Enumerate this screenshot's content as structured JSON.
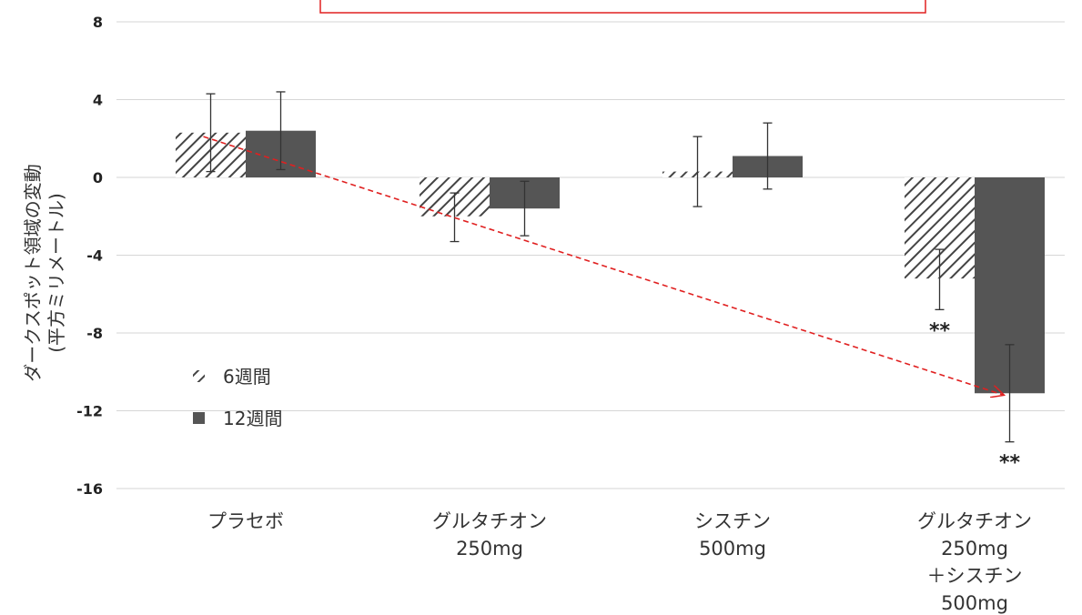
{
  "chart_data": {
    "type": "bar",
    "ylabel": [
      "ダークスポット領域の変動",
      "(平方ミリメートル)"
    ],
    "ylim": [
      -16,
      8
    ],
    "yticks": [
      "8",
      "4",
      "0",
      "-4",
      "-8",
      "-12",
      "-16"
    ],
    "ytick_values": [
      8,
      4,
      0,
      -4,
      -8,
      -12,
      -16
    ],
    "grid": true,
    "legend_position": "left",
    "categories": [
      [
        "プラセボ"
      ],
      [
        "グルタチオン",
        "250mg"
      ],
      [
        "シスチン",
        "500mg"
      ],
      [
        "グルタチオン",
        "250mg",
        "＋シスチン",
        "500mg"
      ]
    ],
    "series": [
      {
        "name": "6週間",
        "pattern": "hatched",
        "values": [
          2.3,
          -2.0,
          0.3,
          -5.2
        ],
        "err_low": [
          0.3,
          -3.3,
          -1.5,
          -6.8
        ],
        "err_high": [
          4.3,
          -0.8,
          2.1,
          -3.7
        ],
        "significance": [
          "",
          "",
          "",
          "**"
        ]
      },
      {
        "name": "12週間",
        "pattern": "solid",
        "color": "#555555",
        "values": [
          2.4,
          -1.6,
          1.1,
          -11.1
        ],
        "err_low": [
          0.4,
          -3.0,
          -0.6,
          -13.6
        ],
        "err_high": [
          4.4,
          -0.2,
          2.8,
          -8.6
        ],
        "significance": [
          "",
          "",
          "",
          "**"
        ]
      }
    ],
    "annotation": {
      "type": "arrow",
      "color": "#e02020",
      "style": "dashed",
      "from": {
        "category": 0,
        "series": 0,
        "value": 2.1
      },
      "to": {
        "category": 3,
        "series": 1,
        "value": -11.2
      }
    },
    "highlight_box_color": "#e02020"
  }
}
